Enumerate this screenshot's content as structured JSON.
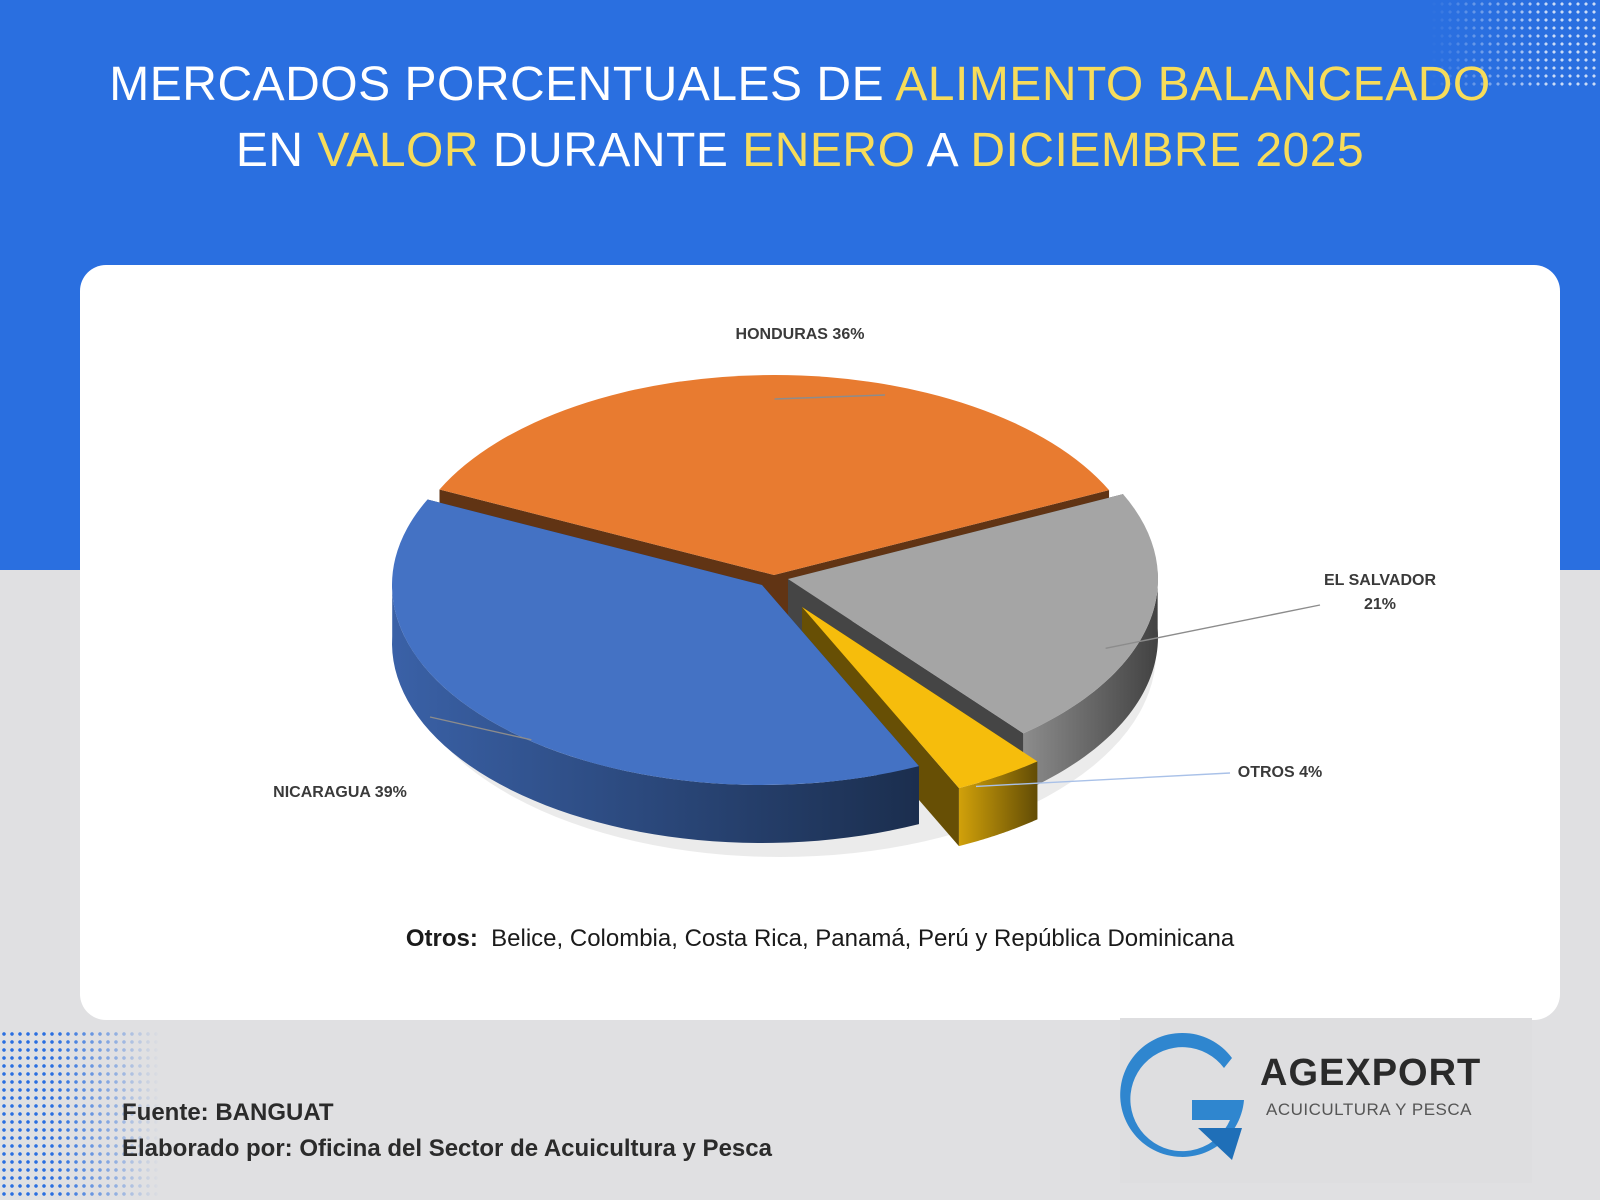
{
  "title": {
    "line1_part1": "MERCADOS PORCENTUALES DE ",
    "line1_part2": "ALIMENTO BALANCEADO",
    "line2_part1": "EN ",
    "line2_part2": "VALOR",
    "line2_part3": " DURANTE ",
    "line2_part4": "ENERO",
    "line2_part5": " A ",
    "line2_part6": "DICIEMBRE 2025"
  },
  "chart_data": {
    "type": "pie",
    "style": "3d-exploded",
    "slices": [
      {
        "name": "HONDURAS",
        "value": 36,
        "label_line1": "HONDURAS 36%",
        "label_line2": "",
        "color": "#e87b30"
      },
      {
        "name": "EL SALVADOR",
        "value": 21,
        "label_line1": "EL SALVADOR",
        "label_line2": "21%",
        "color": "#a5a5a5"
      },
      {
        "name": "OTROS",
        "value": 4,
        "label_line1": "OTROS 4%",
        "label_line2": "",
        "color": "#f6bd0c"
      },
      {
        "name": "NICARAGUA",
        "value": 39,
        "label_line1": "NICARAGUA  39%",
        "label_line2": "",
        "color": "#4472c4"
      }
    ]
  },
  "note": {
    "label": "Otros:",
    "text": "Belice, Colombia, Costa Rica, Panamá, Perú y República Dominicana"
  },
  "footer": {
    "source": "Fuente: BANGUAT",
    "author": "Elaborado por: Oficina del Sector de Acuicultura y Pesca"
  },
  "logo": {
    "name": "AGEXPORT",
    "tagline": "ACUICULTURA Y PESCA"
  },
  "colors": {
    "band_blue": "#2a6fe0",
    "highlight_yellow": "#f7dc5a"
  }
}
